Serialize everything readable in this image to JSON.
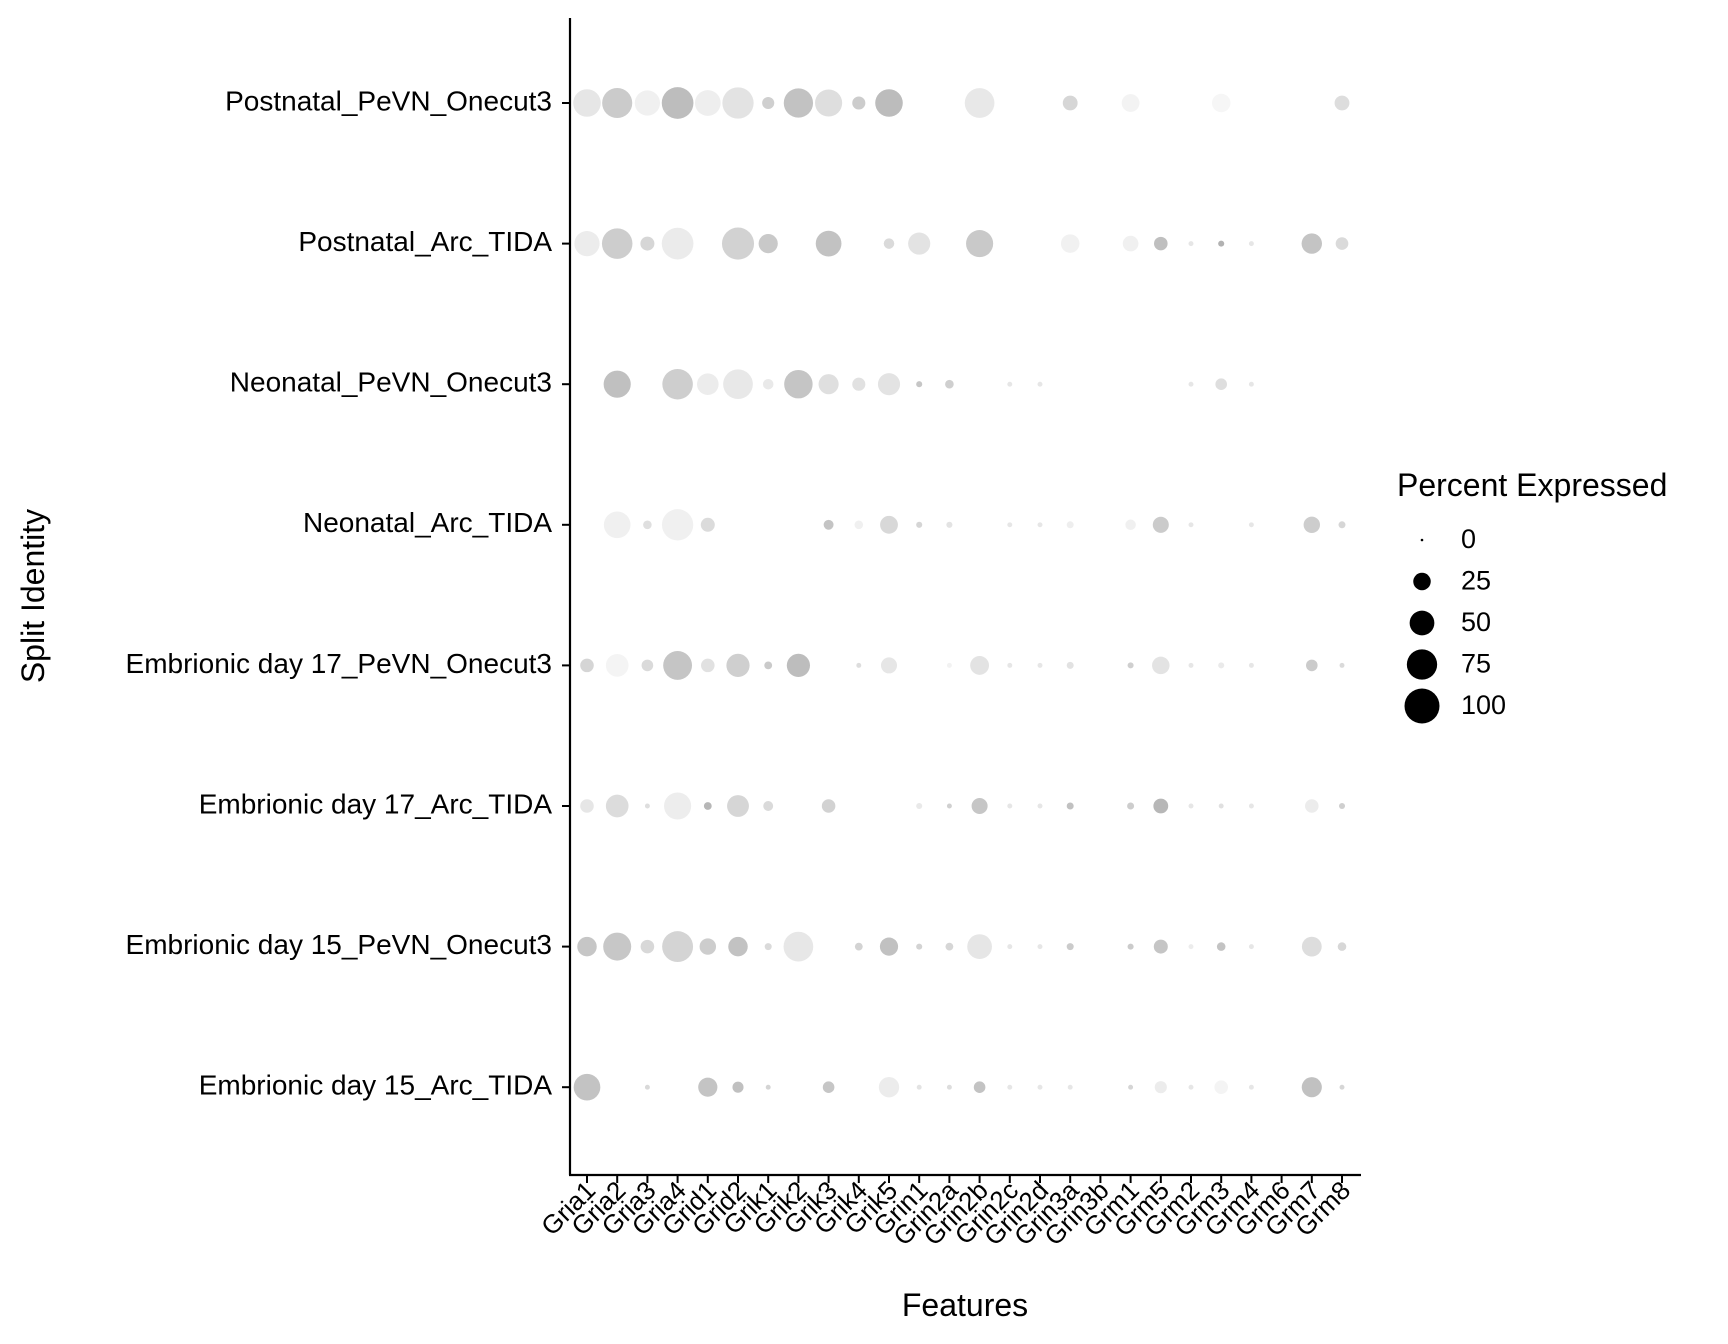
{
  "chart_data": {
    "type": "dotplot",
    "xlabel": "Features",
    "ylabel": "Split Identity",
    "features": [
      "Gria1",
      "Gria2",
      "Gria3",
      "Gria4",
      "Grid1",
      "Grid2",
      "Grik1",
      "Grik2",
      "Grik3",
      "Grik4",
      "Grik5",
      "Grin1",
      "Grin2a",
      "Grin2b",
      "Grin2c",
      "Grin2d",
      "Grin3a",
      "Grin3b",
      "Grm1",
      "Grm5",
      "Grm2",
      "Grm3",
      "Grm4",
      "Grm6",
      "Grm7",
      "Grm8"
    ],
    "groups": [
      "Postnatal_PeVN_Onecut3",
      "Postnatal_Arc_TIDA",
      "Neonatal_PeVN_Onecut3",
      "Neonatal_Arc_TIDA",
      "Embrionic day 17_PeVN_Onecut3",
      "Embrionic day 17_Arc_TIDA",
      "Embrionic day 15_PeVN_Onecut3",
      "Embrionic day 15_Arc_TIDA"
    ],
    "percent_expressed": [
      [
        62,
        74,
        52,
        82,
        54,
        80,
        12,
        70,
        60,
        14,
        62,
        0,
        0,
        72,
        0,
        0,
        18,
        0,
        26,
        0,
        0,
        28,
        0,
        0,
        0,
        18
      ],
      [
        52,
        76,
        16,
        82,
        0,
        84,
        30,
        0,
        54,
        0,
        9,
        40,
        0,
        60,
        0,
        0,
        28,
        0,
        20,
        15,
        2,
        3,
        2,
        0,
        34,
        13
      ],
      [
        0,
        60,
        0,
        76,
        38,
        72,
        9,
        66,
        33,
        14,
        40,
        3,
        6,
        0,
        2,
        2,
        0,
        0,
        0,
        0,
        2,
        11,
        2,
        0,
        0,
        0
      ],
      [
        0,
        58,
        6,
        80,
        16,
        0,
        0,
        0,
        8,
        6,
        26,
        3,
        3,
        0,
        2,
        2,
        4,
        0,
        9,
        21,
        2,
        0,
        2,
        0,
        22,
        4
      ],
      [
        15,
        42,
        11,
        68,
        15,
        44,
        5,
        44,
        0,
        2,
        21,
        0,
        2,
        29,
        2,
        2,
        4,
        0,
        3,
        25,
        2,
        3,
        2,
        0,
        11,
        2
      ],
      [
        15,
        42,
        2,
        60,
        5,
        39,
        8,
        0,
        15,
        0,
        0,
        3,
        2,
        21,
        2,
        2,
        4,
        0,
        4,
        18,
        2,
        2,
        2,
        0,
        15,
        3
      ],
      [
        31,
        64,
        15,
        78,
        22,
        31,
        4,
        72,
        0,
        5,
        27,
        3,
        5,
        50,
        2,
        2,
        4,
        0,
        3,
        16,
        2,
        6,
        2,
        0,
        32,
        6
      ],
      [
        58,
        0,
        2,
        0,
        30,
        10,
        2,
        0,
        11,
        0,
        34,
        2,
        2,
        11,
        2,
        2,
        2,
        0,
        2,
        12,
        2,
        15,
        2,
        0,
        33,
        2
      ]
    ],
    "avg_expression_gray": [
      [
        "#e6e6e6",
        "#cbcbcb",
        "#f0f0f0",
        "#bdbdbd",
        "#eeeeee",
        "#e3e3e3",
        "#cfcfcf",
        "#c2c2c2",
        "#dedede",
        "#cccccc",
        "#bcbcbc",
        "#ffffff",
        "#ffffff",
        "#e8e8e8",
        "#ffffff",
        "#ffffff",
        "#d6d6d6",
        "#ffffff",
        "#f3f3f3",
        "#ffffff",
        "#ffffff",
        "#f6f6f6",
        "#ffffff",
        "#ffffff",
        "#ffffff",
        "#dddddd"
      ],
      [
        "#ececec",
        "#cdcdcd",
        "#d6d6d6",
        "#ebebeb",
        "#ffffff",
        "#d2d2d2",
        "#c9c9c9",
        "#ffffff",
        "#c2c2c2",
        "#ffffff",
        "#dadada",
        "#e3e3e3",
        "#ffffff",
        "#c9c9c9",
        "#ffffff",
        "#ffffff",
        "#f1f1f1",
        "#ffffff",
        "#f0f0f0",
        "#bfbfbf",
        "#e6e6e6",
        "#b2b2b2",
        "#e6e6e6",
        "#ffffff",
        "#c4c4c4",
        "#dadada"
      ],
      [
        "#ffffff",
        "#c0c0c0",
        "#ffffff",
        "#cecece",
        "#ececec",
        "#e8e8e8",
        "#e9e9e9",
        "#c5c5c5",
        "#dfdfdf",
        "#e1e1e1",
        "#e3e3e3",
        "#c6c6c6",
        "#cfcfcf",
        "#ffffff",
        "#e6e6e6",
        "#e6e6e6",
        "#ffffff",
        "#ffffff",
        "#ffffff",
        "#ffffff",
        "#e6e6e6",
        "#dedede",
        "#e6e6e6",
        "#ffffff",
        "#ffffff",
        "#ffffff"
      ],
      [
        "#ffffff",
        "#f0f0f0",
        "#dfdfdf",
        "#f0f0f0",
        "#dbdbdb",
        "#ffffff",
        "#ffffff",
        "#ffffff",
        "#c4c4c4",
        "#f0f0f0",
        "#d8d8d8",
        "#d5d5d5",
        "#e3e3e3",
        "#ffffff",
        "#e6e6e6",
        "#e6e6e6",
        "#eeeeee",
        "#ffffff",
        "#f0f0f0",
        "#cbcbcb",
        "#e6e6e6",
        "#ffffff",
        "#e6e6e6",
        "#ffffff",
        "#cdcdcd",
        "#d6d6d6"
      ],
      [
        "#d5d5d5",
        "#f4f4f4",
        "#dadada",
        "#c5c5c5",
        "#e1e1e1",
        "#cfcfcf",
        "#cacaca",
        "#bdbdbd",
        "#ffffff",
        "#dddddd",
        "#e6e6e6",
        "#ffffff",
        "#f2f2f2",
        "#e3e3e3",
        "#e6e6e6",
        "#e6e6e6",
        "#e2e2e2",
        "#ffffff",
        "#cfcfcf",
        "#e3e3e3",
        "#e6e6e6",
        "#eaeaea",
        "#e6e6e6",
        "#ffffff",
        "#cbcbcb",
        "#dadada"
      ],
      [
        "#e6e6e6",
        "#dcdcdc",
        "#dedede",
        "#ededed",
        "#b7b7b7",
        "#d6d6d6",
        "#dadada",
        "#ffffff",
        "#d2d2d2",
        "#ffffff",
        "#ffffff",
        "#e9e9e9",
        "#d0d0d0",
        "#c6c6c6",
        "#e6e6e6",
        "#e6e6e6",
        "#c1c1c1",
        "#ffffff",
        "#cdcdcd",
        "#b7b7b7",
        "#e6e6e6",
        "#e0e0e0",
        "#e6e6e6",
        "#ffffff",
        "#ececec",
        "#cfcfcf"
      ],
      [
        "#c6c6c6",
        "#c7c7c7",
        "#d8d8d8",
        "#d4d4d4",
        "#cdcdcd",
        "#c2c2c2",
        "#dadada",
        "#e7e7e7",
        "#ffffff",
        "#d3d3d3",
        "#c1c1c1",
        "#d3d3d3",
        "#d6d6d6",
        "#e6e6e6",
        "#e6e6e6",
        "#e6e6e6",
        "#cbcbcb",
        "#ffffff",
        "#cbcbcb",
        "#c5c5c5",
        "#ececec",
        "#c3c3c3",
        "#e6e6e6",
        "#ffffff",
        "#dddddd",
        "#d7d7d7"
      ],
      [
        "#c3c3c3",
        "#ffffff",
        "#d9d9d9",
        "#ffffff",
        "#c4c4c4",
        "#c0c0c0",
        "#d4d4d4",
        "#ffffff",
        "#c6c6c6",
        "#ffffff",
        "#ececec",
        "#e3e3e3",
        "#dddddd",
        "#c3c3c3",
        "#e6e6e6",
        "#e6e6e6",
        "#e6e6e6",
        "#ffffff",
        "#d5d5d5",
        "#ececec",
        "#e6e6e6",
        "#f4f4f4",
        "#e6e6e6",
        "#ffffff",
        "#c1c1c1",
        "#d6d6d6"
      ]
    ],
    "size_legend": {
      "title": "Percent Expressed",
      "values": [
        0,
        25,
        50,
        75,
        100
      ],
      "labels": [
        "0",
        "25",
        "50",
        "75",
        "100"
      ],
      "color": "#000000"
    },
    "xlim_index": [
      0,
      25
    ],
    "legend_position": "right",
    "grid": false
  }
}
